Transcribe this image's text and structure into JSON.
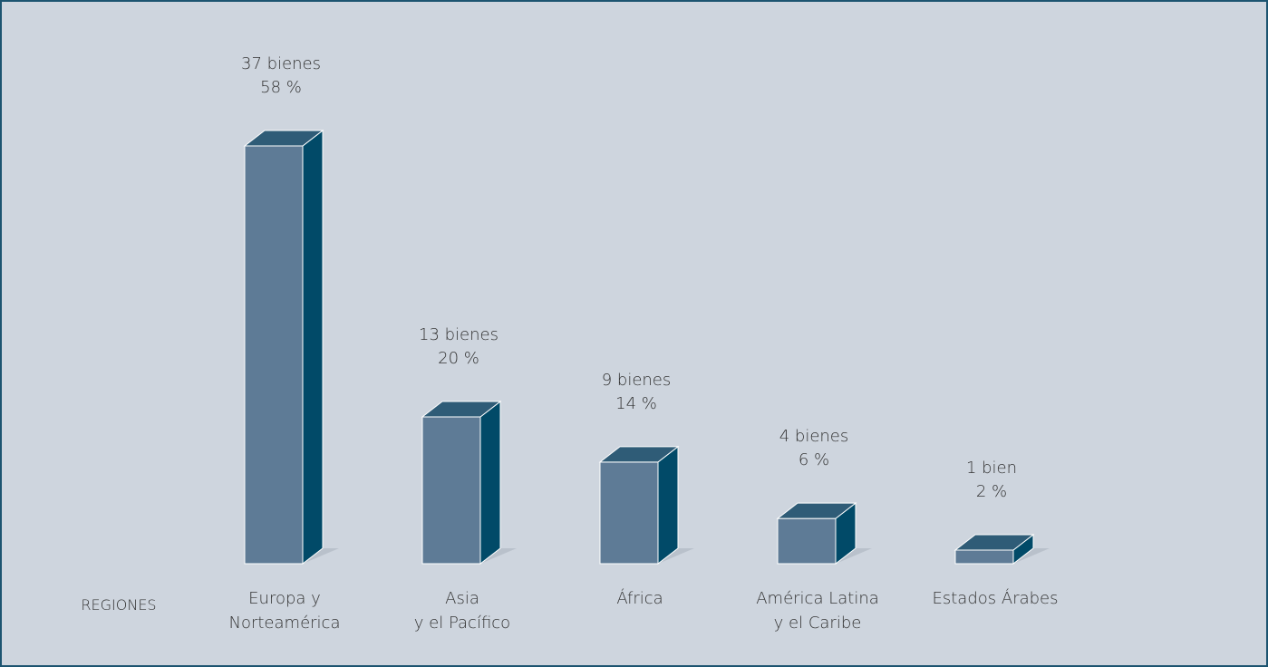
{
  "chart_data": {
    "type": "bar",
    "categories": [
      [
        "Europa y",
        "Norteamérica"
      ],
      [
        "Asia",
        "y el Pacífico"
      ],
      [
        "África"
      ],
      [
        "América Latina",
        "y el Caribe"
      ],
      [
        "Estados Árabes"
      ]
    ],
    "values": [
      37,
      13,
      9,
      4,
      1
    ],
    "value_labels": [
      "37 bienes",
      "13 bienes",
      "9 bienes",
      "4 bienes",
      "1 bien"
    ],
    "percent_labels": [
      "58 %",
      "20 %",
      "14 %",
      "6 %",
      "2 %"
    ],
    "xlabel": "REGIONES",
    "ylabel": "",
    "title": "",
    "ylim": [
      0,
      37
    ],
    "grid": false,
    "colors": {
      "front": "#5e7b96",
      "side": "#014a68",
      "top": "#2f5c77",
      "outline": "#ffffff",
      "background": "#ced5de",
      "border": "#1c5470"
    }
  }
}
